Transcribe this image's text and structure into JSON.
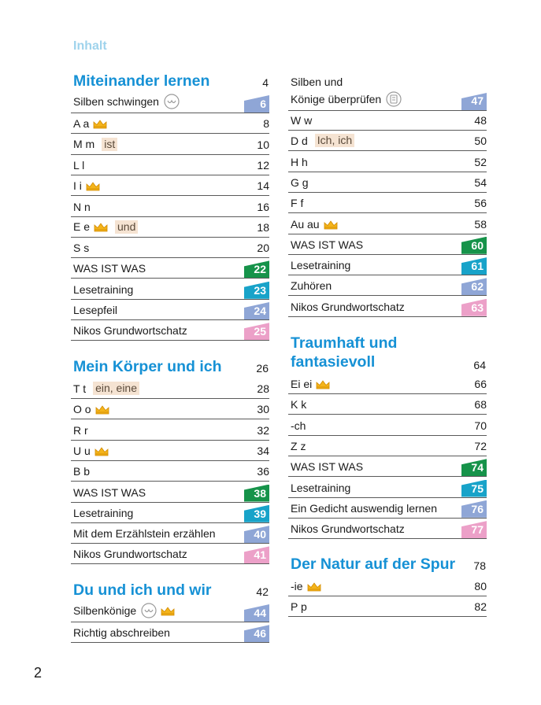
{
  "title": "Inhalt",
  "page_number": "2",
  "colors": {
    "blue": "#8fa6d6",
    "green": "#16934a",
    "teal": "#18a3c9",
    "pink": "#eca0c8",
    "heading": "#1691d5"
  },
  "left": {
    "sections": [
      {
        "title": "Miteinander lernen",
        "page": "4",
        "rows": [
          {
            "label": "Silben schwingen",
            "page": "6",
            "tab": "blue",
            "icon": "syllable-icon"
          },
          {
            "label": "A a",
            "page": "8",
            "icon": "crown-icon"
          },
          {
            "label": "M m",
            "page": "10",
            "word": "ist"
          },
          {
            "label": "L l",
            "page": "12"
          },
          {
            "label": "I i",
            "page": "14",
            "icon": "crown-icon"
          },
          {
            "label": "N n",
            "page": "16"
          },
          {
            "label": "E e",
            "page": "18",
            "icon": "crown-icon",
            "word": "und"
          },
          {
            "label": "S s",
            "page": "20"
          },
          {
            "label": "WAS IST WAS",
            "page": "22",
            "tab": "green"
          },
          {
            "label": "Lesetraining",
            "page": "23",
            "tab": "teal"
          },
          {
            "label": "Lesepfeil",
            "page": "24",
            "tab": "blue"
          },
          {
            "label": "Nikos Grundwortschatz",
            "page": "25",
            "tab": "pink"
          }
        ]
      },
      {
        "title": "Mein Körper und ich",
        "page": "26",
        "rows": [
          {
            "label": "T t",
            "page": "28",
            "word": "ein, eine"
          },
          {
            "label": "O o",
            "page": "30",
            "icon": "crown-icon"
          },
          {
            "label": "R r",
            "page": "32"
          },
          {
            "label": "U u",
            "page": "34",
            "icon": "crown-icon"
          },
          {
            "label": "B b",
            "page": "36"
          },
          {
            "label": "WAS IST WAS",
            "page": "38",
            "tab": "green"
          },
          {
            "label": "Lesetraining",
            "page": "39",
            "tab": "teal"
          },
          {
            "label": "Mit dem Erzählstein erzählen",
            "page": "40",
            "tab": "blue"
          },
          {
            "label": "Nikos Grundwortschatz",
            "page": "41",
            "tab": "pink"
          }
        ]
      },
      {
        "title": "Du und ich und wir",
        "page": "42",
        "rows": [
          {
            "label": "Silbenkönige",
            "page": "44",
            "tab": "blue",
            "icon": "syllable-crown-icon"
          },
          {
            "label": "Richtig abschreiben",
            "page": "46",
            "tab": "blue"
          }
        ]
      }
    ]
  },
  "right": {
    "intro": {
      "line1": "Silben und",
      "line2": "Könige überprüfen",
      "page": "47",
      "tab": "blue"
    },
    "rows_a": [
      {
        "label": "W w",
        "page": "48"
      },
      {
        "label": "D d",
        "page": "50",
        "word": "Ich, ich"
      },
      {
        "label": "H h",
        "page": "52"
      },
      {
        "label": "G g",
        "page": "54"
      },
      {
        "label": "F f",
        "page": "56"
      },
      {
        "label": "Au au",
        "page": "58",
        "icon": "crown-icon"
      },
      {
        "label": "WAS IST WAS",
        "page": "60",
        "tab": "green"
      },
      {
        "label": "Lesetraining",
        "page": "61",
        "tab": "teal"
      },
      {
        "label": "Zuhören",
        "page": "62",
        "tab": "blue"
      },
      {
        "label": "Nikos Grundwortschatz",
        "page": "63",
        "tab": "pink"
      }
    ],
    "section2": {
      "title1": "Traumhaft und",
      "title2": "fantasievoll",
      "page": "64",
      "rows": [
        {
          "label": "Ei ei",
          "page": "66",
          "icon": "crown-icon"
        },
        {
          "label": "K k",
          "page": "68"
        },
        {
          "label": "-ch",
          "page": "70"
        },
        {
          "label": "Z z",
          "page": "72"
        },
        {
          "label": "WAS IST WAS",
          "page": "74",
          "tab": "green"
        },
        {
          "label": "Lesetraining",
          "page": "75",
          "tab": "teal"
        },
        {
          "label": "Ein Gedicht auswendig lernen",
          "page": "76",
          "tab": "blue"
        },
        {
          "label": "Nikos Grundwortschatz",
          "page": "77",
          "tab": "pink"
        }
      ]
    },
    "section3": {
      "title": "Der Natur auf der Spur",
      "page": "78",
      "rows": [
        {
          "label": "-ie",
          "page": "80",
          "icon": "crown-icon"
        },
        {
          "label": "P p",
          "page": "82"
        }
      ]
    }
  }
}
